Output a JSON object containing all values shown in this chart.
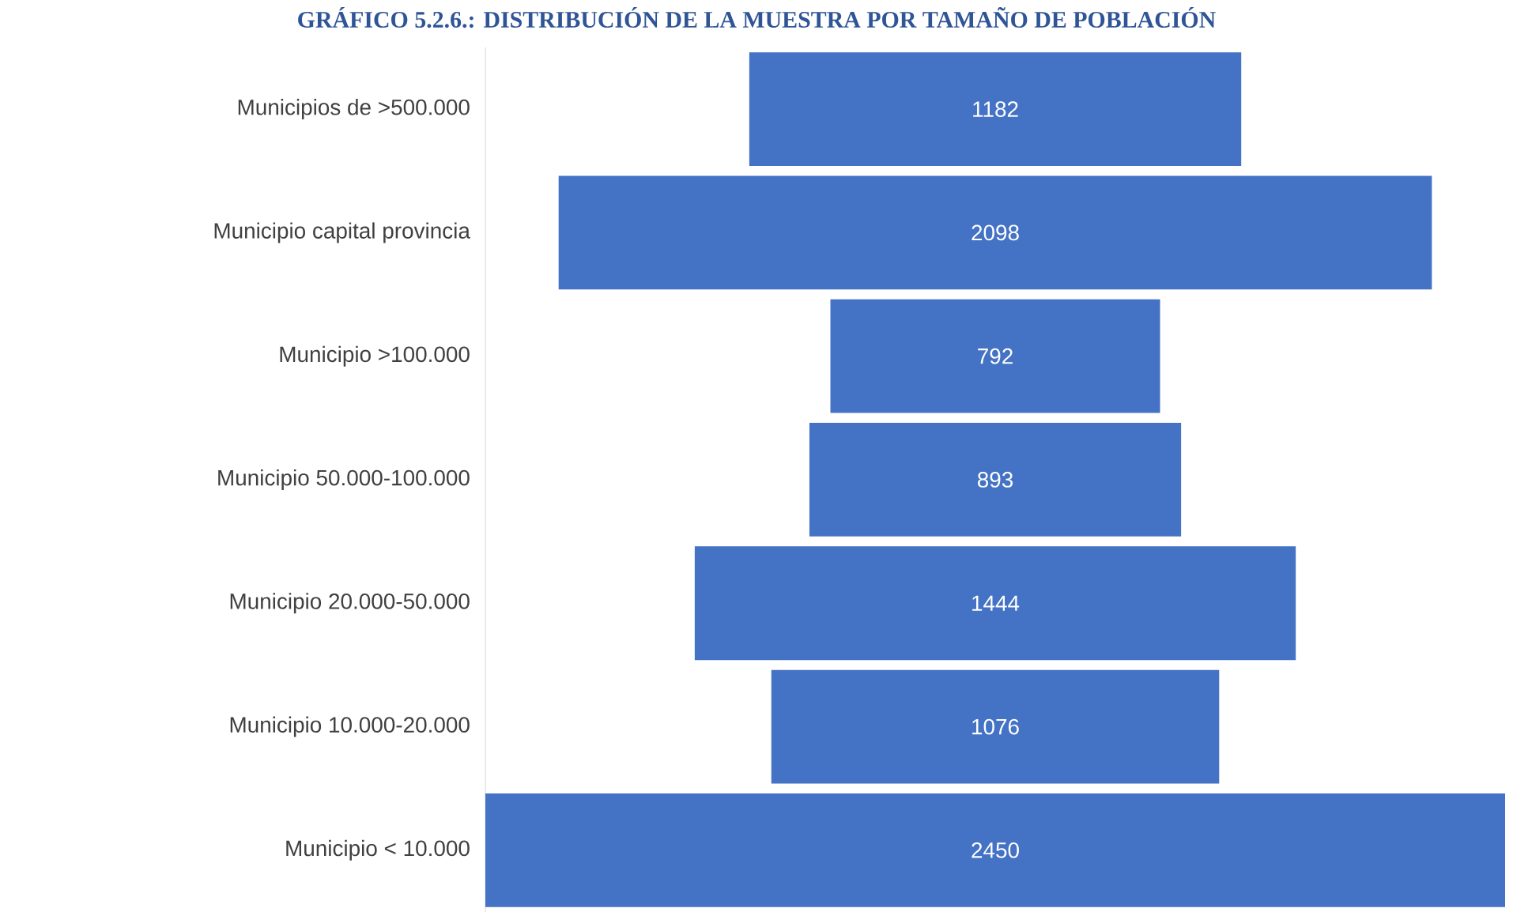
{
  "chart_data": {
    "type": "other",
    "title": "GRÁFICO 5.2.6.: DISTRIBUCIÓN DE LA MUESTRA POR TAMAÑO DE POBLACIÓN",
    "categories": [
      "Municipios de >500.000",
      "Municipio capital provincia",
      "Municipio >100.000",
      "Municipio 50.000-100.000",
      "Municipio 20.000-50.000",
      "Municipio 10.000-20.000",
      "Municipio < 10.000"
    ],
    "values": [
      1182,
      2098,
      792,
      893,
      1444,
      1076,
      2450
    ],
    "color": "#4472c4",
    "data_labels": true
  }
}
